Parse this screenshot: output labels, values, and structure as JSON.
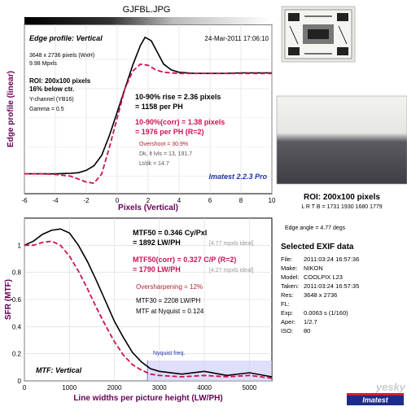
{
  "window": {
    "title": "GJFBL.JPG"
  },
  "edge_panel": {
    "title": "Edge profile: Vertical",
    "date": "24-Mar-2011 17:06:10",
    "size": "3648 x 2736 pixels (WxH)",
    "mpxls": "9.98 Mpxls",
    "roi_line1": "ROI: 200x100 pixels",
    "roi_line2": "16% below ctr.",
    "ychannel": "Y-channel (YB16)",
    "gamma": "Gamma = 0.5",
    "rise1": "10-90% rise = 2.36 pixels",
    "rise2": "= 1158 per PH",
    "corr1": "10-90%(corr) = 1.38 pixels",
    "corr2": "= 1976 per PH  (R=2)",
    "overshoot": "Overshoot = 30.9%",
    "dk": "Dk, lt lvls = 13, 191.7",
    "ltdk": "Lt/dk = 14.7",
    "brand": "Imatest 2.2.3 Pro"
  },
  "mtf_panel": {
    "mtf50": "MTF50 = 0.346 Cy/Pxl",
    "lwph": "= 1892 LW/PH",
    "ideal1": "[4.77 mpxls ideal]",
    "mtf50corr": "MTF50(corr) = 0.327 C/P  (R=2)",
    "lwph_corr": "= 1790 LW/PH",
    "ideal2": "[4.27 mpxls ideal]",
    "oversharp": "Oversharpening = 12%",
    "mtf30": "MTF30 = 2208 LW/PH",
    "nyq_val": "MTF at Nyquist = 0.124",
    "nyquist": "Nyquist freq.",
    "label": "MTF: Vertical",
    "brand": "Imatest"
  },
  "right_panel": {
    "roi_title": "ROI: 200x100 pixels",
    "lrtb": "L R  T B = 1731 1930  1680 1779",
    "edge_angle": "Edge angle = 4.77 degs",
    "exif_title": "Selected EXIF data",
    "exif": [
      {
        "k": "File:",
        "v": "2011:03:24 16:57:36"
      },
      {
        "k": "Make:",
        "v": "NIKON"
      },
      {
        "k": "Model:",
        "v": "COOLPIX L23"
      },
      {
        "k": "Taken:",
        "v": "2011:03:24 16:57:35"
      },
      {
        "k": "Res:",
        "v": "3648 x 2736"
      },
      {
        "k": "FL:",
        "v": ""
      },
      {
        "k": "Exp:",
        "v": "0.0063 s   (1/160)"
      },
      {
        "k": "Aper:",
        "v": "1/2.7"
      },
      {
        "k": "ISO:",
        "v": "80"
      }
    ],
    "watermark": "yesky"
  },
  "colors": {
    "plot_bg": "#ffffff",
    "series_main": "#000000",
    "series_corr": "#cc1155",
    "label": "#660055",
    "brand": "#2233aa"
  },
  "chart_data": [
    {
      "type": "line",
      "title": "Edge profile: Vertical",
      "xlabel": "Pixels (Vertical)",
      "ylabel": "Edge profile (linear)",
      "xlim": [
        -6,
        10
      ],
      "xticks": [
        -6,
        -4,
        -2,
        0,
        2,
        4,
        6,
        8,
        10
      ],
      "series": [
        {
          "style": "solid",
          "x": [
            -6,
            -5,
            -4,
            -3,
            -2.5,
            -2,
            -1.5,
            -1,
            -0.5,
            0,
            0.5,
            1,
            1.5,
            1.8,
            2.2,
            2.6,
            3,
            3.5,
            4,
            5,
            6,
            7,
            8,
            9,
            10
          ],
          "y": [
            0.02,
            0.02,
            0.02,
            0.025,
            0.03,
            0.05,
            0.09,
            0.18,
            0.35,
            0.55,
            0.75,
            0.95,
            1.12,
            1.19,
            1.16,
            1.06,
            0.96,
            0.91,
            0.89,
            0.88,
            0.88,
            0.88,
            0.885,
            0.885,
            0.885
          ]
        },
        {
          "style": "dashed",
          "x": [
            -6,
            -5,
            -4,
            -3,
            -2,
            -1.5,
            -1,
            -0.5,
            0,
            0.5,
            1,
            1.5,
            2,
            2.5,
            3,
            4,
            5,
            6,
            7,
            8,
            9,
            10
          ],
          "y": [
            0.02,
            0.02,
            0.015,
            0.0,
            -0.05,
            -0.06,
            0.02,
            0.25,
            0.5,
            0.75,
            0.9,
            0.96,
            0.95,
            0.91,
            0.89,
            0.88,
            0.88,
            0.88,
            0.88,
            0.88,
            0.88,
            0.88
          ]
        }
      ]
    },
    {
      "type": "line",
      "title": "MTF: Vertical",
      "xlabel": "Line widths per picture height (LW/PH)",
      "ylabel": "SFR (MTF)",
      "xlim": [
        0,
        5500
      ],
      "ylim": [
        0,
        1.2
      ],
      "xticks": [
        0,
        1000,
        2000,
        3000,
        4000,
        5000
      ],
      "yticks": [
        0,
        0.2,
        0.4,
        0.6,
        0.8,
        1
      ],
      "nyquist_x": 2736,
      "series": [
        {
          "style": "solid",
          "x": [
            0,
            200,
            400,
            600,
            800,
            1000,
            1200,
            1400,
            1600,
            1800,
            2000,
            2200,
            2400,
            2600,
            2800,
            3000,
            3500,
            4000,
            4500,
            5000,
            5500
          ],
          "y": [
            1.0,
            1.03,
            1.08,
            1.11,
            1.12,
            1.09,
            1.0,
            0.88,
            0.74,
            0.59,
            0.44,
            0.32,
            0.21,
            0.14,
            0.09,
            0.07,
            0.05,
            0.07,
            0.04,
            0.06,
            0.03
          ]
        },
        {
          "style": "dashed",
          "x": [
            0,
            200,
            400,
            600,
            800,
            1000,
            1200,
            1400,
            1600,
            1800,
            2000,
            2200,
            2400,
            2600,
            2800,
            3000,
            3500,
            4000,
            4500,
            5000,
            5500
          ],
          "y": [
            1.0,
            1.0,
            1.02,
            1.03,
            1.0,
            0.92,
            0.81,
            0.68,
            0.54,
            0.41,
            0.29,
            0.19,
            0.12,
            0.08,
            0.05,
            0.04,
            0.03,
            0.04,
            0.03,
            0.04,
            0.02
          ]
        }
      ]
    }
  ]
}
